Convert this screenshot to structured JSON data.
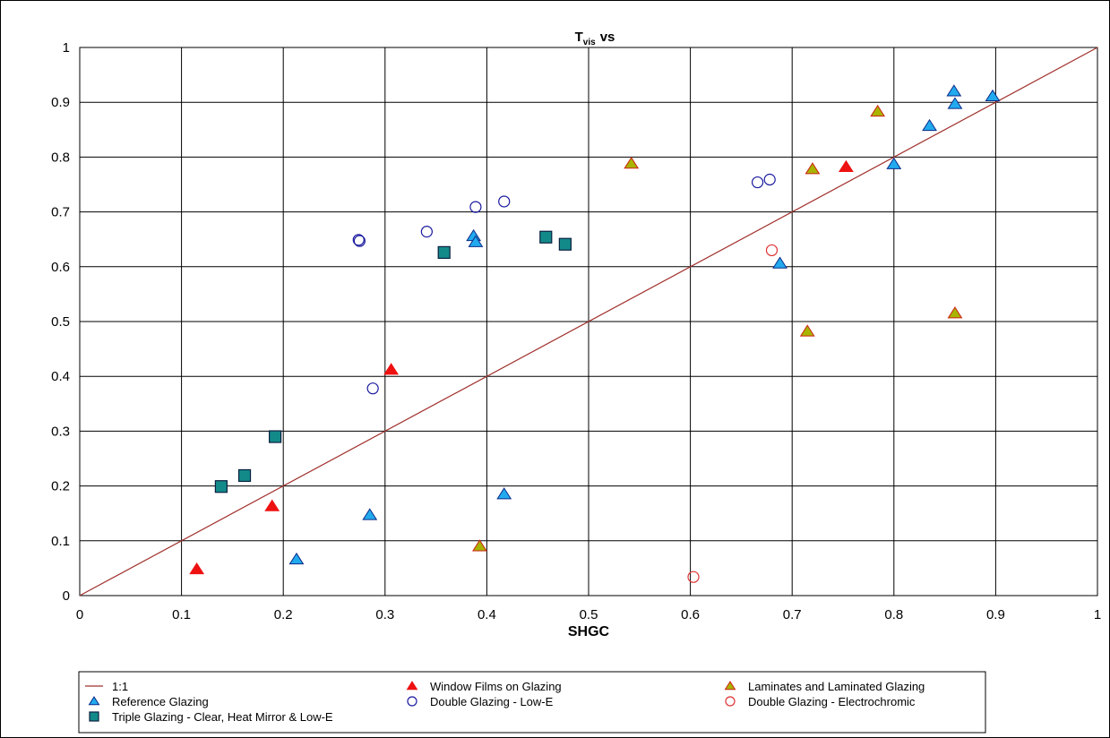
{
  "chart_data": {
    "type": "scatter",
    "title": "T",
    "title_subscript": "vis",
    "title_suffix": "vs",
    "xlabel": "SHGC",
    "ylabel": "",
    "xlim": [
      0,
      1
    ],
    "ylim": [
      0,
      1
    ],
    "x_ticks": [
      "0",
      "0.1",
      "0.2",
      "0.3",
      "0.4",
      "0.5",
      "0.6",
      "0.7",
      "0.8",
      "0.9",
      "1"
    ],
    "y_ticks": [
      "0",
      "0.1",
      "0.2",
      "0.3",
      "0.4",
      "0.5",
      "0.6",
      "0.7",
      "0.8",
      "0.9",
      "1"
    ],
    "grid": true,
    "legend_position": "bottom",
    "line_1to1": {
      "name": "1:1",
      "color": "#a0302c"
    },
    "series": [
      {
        "name": "Window Films on Glazing",
        "marker": "triangle",
        "fill": "#ee1111",
        "stroke": "#ee1111",
        "points": [
          [
            0.115,
            0.048
          ],
          [
            0.189,
            0.163
          ],
          [
            0.306,
            0.412
          ],
          [
            0.753,
            0.782
          ]
        ]
      },
      {
        "name": "Laminates and Laminated Glazing",
        "marker": "triangle",
        "fill": "#a8b400",
        "stroke": "#cc2211",
        "points": [
          [
            0.393,
            0.09
          ],
          [
            0.542,
            0.788
          ],
          [
            0.715,
            0.482
          ],
          [
            0.72,
            0.778
          ],
          [
            0.784,
            0.883
          ],
          [
            0.86,
            0.515
          ]
        ]
      },
      {
        "name": "Reference Glazing",
        "marker": "triangle",
        "fill": "#22aaee",
        "stroke": "#0a2a88",
        "points": [
          [
            0.213,
            0.066
          ],
          [
            0.285,
            0.147
          ],
          [
            0.387,
            0.656
          ],
          [
            0.389,
            0.645
          ],
          [
            0.417,
            0.185
          ],
          [
            0.688,
            0.606
          ],
          [
            0.8,
            0.787
          ],
          [
            0.835,
            0.857
          ],
          [
            0.859,
            0.92
          ],
          [
            0.86,
            0.897
          ],
          [
            0.897,
            0.911
          ]
        ]
      },
      {
        "name": "Double Glazing - Low-E",
        "marker": "circle-open",
        "fill": "none",
        "stroke": "#1a1aa0",
        "points": [
          [
            0.274,
            0.649
          ],
          [
            0.275,
            0.647
          ],
          [
            0.288,
            0.378
          ],
          [
            0.341,
            0.664
          ],
          [
            0.389,
            0.709
          ],
          [
            0.417,
            0.719
          ],
          [
            0.666,
            0.754
          ],
          [
            0.678,
            0.759
          ]
        ]
      },
      {
        "name": "Double Glazing - Electrochromic",
        "marker": "circle-open",
        "fill": "none",
        "stroke": "#dd3333",
        "points": [
          [
            0.603,
            0.034
          ],
          [
            0.68,
            0.63
          ]
        ]
      },
      {
        "name": "Triple Glazing - Clear, Heat Mirror & Low-E",
        "marker": "square",
        "fill": "#138a8a",
        "stroke": "#0a2040",
        "points": [
          [
            0.139,
            0.199
          ],
          [
            0.162,
            0.219
          ],
          [
            0.192,
            0.29
          ],
          [
            0.358,
            0.626
          ],
          [
            0.458,
            0.654
          ],
          [
            0.477,
            0.641
          ]
        ]
      }
    ],
    "legend_order": [
      "1:1",
      "Window Films on Glazing",
      "Laminates and Laminated Glazing",
      "Reference Glazing",
      "Double Glazing - Low-E",
      "Double Glazing - Electrochromic",
      "Triple Glazing - Clear, Heat Mirror & Low-E"
    ]
  }
}
